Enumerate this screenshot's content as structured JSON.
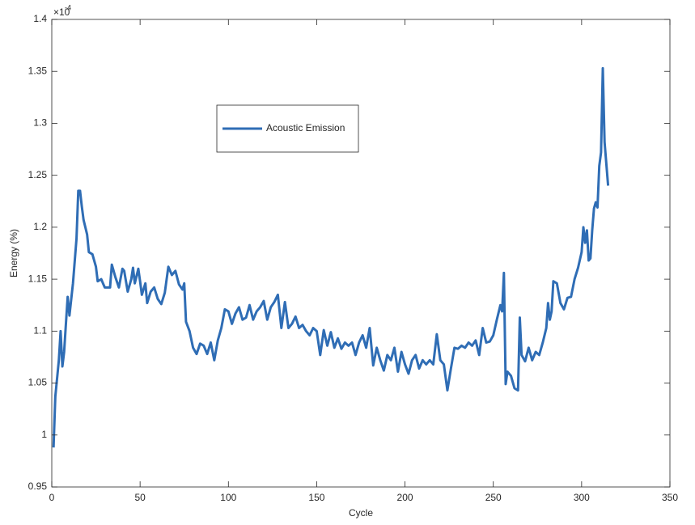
{
  "chart_data": {
    "type": "line",
    "xlabel": "Cycle",
    "ylabel": "Energy (%)",
    "y_multiplier_base": "×10",
    "y_multiplier_exponent": "-4",
    "x": [
      1,
      2,
      4,
      5,
      6,
      7,
      8,
      9,
      10,
      12,
      14,
      15,
      16,
      17,
      18,
      20,
      21,
      23,
      25,
      26,
      28,
      30,
      33,
      34,
      36,
      38,
      40,
      41,
      43,
      45,
      46,
      47,
      49,
      50,
      51,
      53,
      54,
      56,
      58,
      60,
      62,
      64,
      66,
      68,
      70,
      72,
      74,
      75,
      76,
      78,
      80,
      82,
      84,
      86,
      88,
      90,
      92,
      94,
      96,
      98,
      100,
      102,
      104,
      106,
      108,
      110,
      112,
      114,
      116,
      118,
      120,
      122,
      124,
      126,
      128,
      130,
      132,
      134,
      136,
      138,
      140,
      142,
      144,
      146,
      148,
      150,
      152,
      154,
      156,
      158,
      160,
      162,
      164,
      166,
      168,
      170,
      172,
      174,
      176,
      178,
      180,
      182,
      184,
      186,
      188,
      190,
      192,
      194,
      196,
      198,
      200,
      202,
      204,
      206,
      208,
      210,
      212,
      214,
      216,
      218,
      220,
      222,
      224,
      226,
      228,
      230,
      232,
      234,
      236,
      238,
      240,
      242,
      244,
      246,
      248,
      250,
      252,
      254,
      255,
      256,
      257,
      258,
      260,
      262,
      264,
      265,
      266,
      268,
      270,
      272,
      274,
      276,
      278,
      280,
      281,
      282,
      283,
      284,
      286,
      288,
      290,
      292,
      294,
      296,
      298,
      300,
      301,
      302,
      303,
      304,
      305,
      306,
      307,
      308,
      309,
      310,
      311,
      312,
      313,
      315
    ],
    "series": [
      {
        "name": "Acoustic Emission",
        "color": "#2f6db5",
        "values": [
          0.988,
          1.037,
          1.072,
          1.1,
          1.066,
          1.08,
          1.107,
          1.133,
          1.115,
          1.146,
          1.189,
          1.235,
          1.235,
          1.22,
          1.207,
          1.193,
          1.176,
          1.174,
          1.162,
          1.148,
          1.15,
          1.142,
          1.142,
          1.164,
          1.152,
          1.142,
          1.16,
          1.158,
          1.138,
          1.15,
          1.161,
          1.146,
          1.16,
          1.148,
          1.135,
          1.146,
          1.127,
          1.138,
          1.142,
          1.131,
          1.126,
          1.137,
          1.162,
          1.154,
          1.158,
          1.145,
          1.14,
          1.146,
          1.109,
          1.1,
          1.084,
          1.078,
          1.088,
          1.086,
          1.078,
          1.089,
          1.072,
          1.091,
          1.103,
          1.121,
          1.119,
          1.107,
          1.117,
          1.123,
          1.111,
          1.113,
          1.125,
          1.111,
          1.119,
          1.123,
          1.129,
          1.111,
          1.123,
          1.128,
          1.135,
          1.103,
          1.128,
          1.103,
          1.107,
          1.114,
          1.103,
          1.106,
          1.1,
          1.096,
          1.103,
          1.1,
          1.077,
          1.101,
          1.086,
          1.099,
          1.084,
          1.093,
          1.083,
          1.089,
          1.086,
          1.089,
          1.077,
          1.089,
          1.096,
          1.084,
          1.103,
          1.067,
          1.084,
          1.072,
          1.062,
          1.077,
          1.072,
          1.084,
          1.061,
          1.08,
          1.068,
          1.059,
          1.072,
          1.077,
          1.064,
          1.072,
          1.068,
          1.072,
          1.068,
          1.097,
          1.072,
          1.068,
          1.043,
          1.064,
          1.084,
          1.083,
          1.086,
          1.084,
          1.089,
          1.086,
          1.091,
          1.077,
          1.103,
          1.089,
          1.09,
          1.096,
          1.111,
          1.125,
          1.119,
          1.156,
          1.049,
          1.061,
          1.057,
          1.045,
          1.043,
          1.113,
          1.077,
          1.071,
          1.084,
          1.072,
          1.08,
          1.077,
          1.089,
          1.103,
          1.127,
          1.111,
          1.119,
          1.148,
          1.146,
          1.127,
          1.121,
          1.132,
          1.133,
          1.15,
          1.161,
          1.176,
          1.2,
          1.185,
          1.197,
          1.168,
          1.17,
          1.197,
          1.218,
          1.224,
          1.219,
          1.259,
          1.272,
          1.353,
          1.282,
          1.24
        ]
      }
    ],
    "xlim": [
      0,
      350
    ],
    "xticks": [
      0,
      50,
      100,
      150,
      200,
      250,
      300,
      350
    ],
    "ylim": [
      0.95,
      1.4
    ],
    "yticks": [
      0.95,
      1,
      1.05,
      1.1,
      1.15,
      1.2,
      1.25,
      1.3,
      1.35,
      1.4
    ],
    "grid": false
  }
}
